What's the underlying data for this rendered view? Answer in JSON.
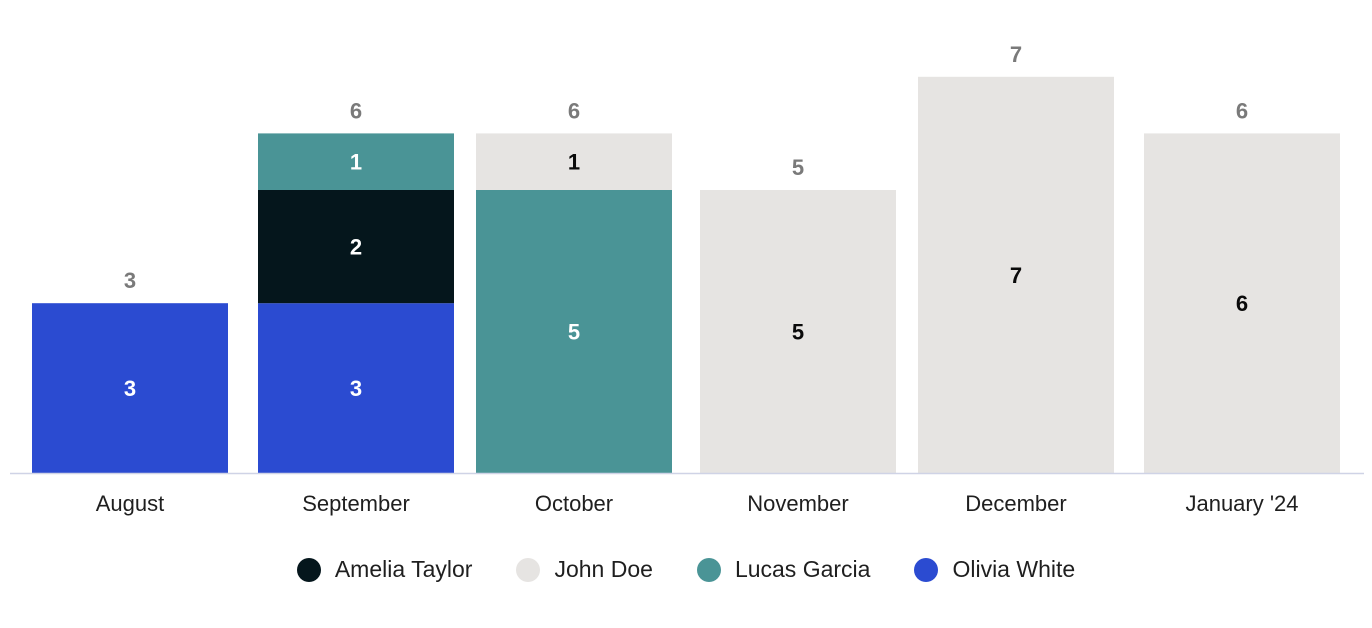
{
  "chart_data": {
    "type": "bar",
    "stacked": true,
    "categories": [
      "August",
      "September",
      "October",
      "November",
      "December",
      "January '24"
    ],
    "series": [
      {
        "name": "Olivia White",
        "color": "#2b4bd1",
        "values": [
          3,
          3,
          0,
          0,
          0,
          0
        ]
      },
      {
        "name": "Amelia Taylor",
        "color": "#05161c",
        "values": [
          0,
          2,
          0,
          0,
          0,
          0
        ]
      },
      {
        "name": "Lucas Garcia",
        "color": "#4a9496",
        "values": [
          0,
          1,
          5,
          0,
          0,
          0
        ]
      },
      {
        "name": "John Doe",
        "color": "#e6e4e2",
        "values": [
          0,
          0,
          1,
          5,
          7,
          6
        ]
      }
    ],
    "totals": [
      "3",
      "6",
      "6",
      "5",
      "7",
      "6"
    ],
    "ylim": [
      0,
      7
    ],
    "grid": false,
    "legend_position": "bottom",
    "legend_order": [
      "Amelia Taylor",
      "John Doe",
      "Lucas Garcia",
      "Olivia White"
    ]
  }
}
